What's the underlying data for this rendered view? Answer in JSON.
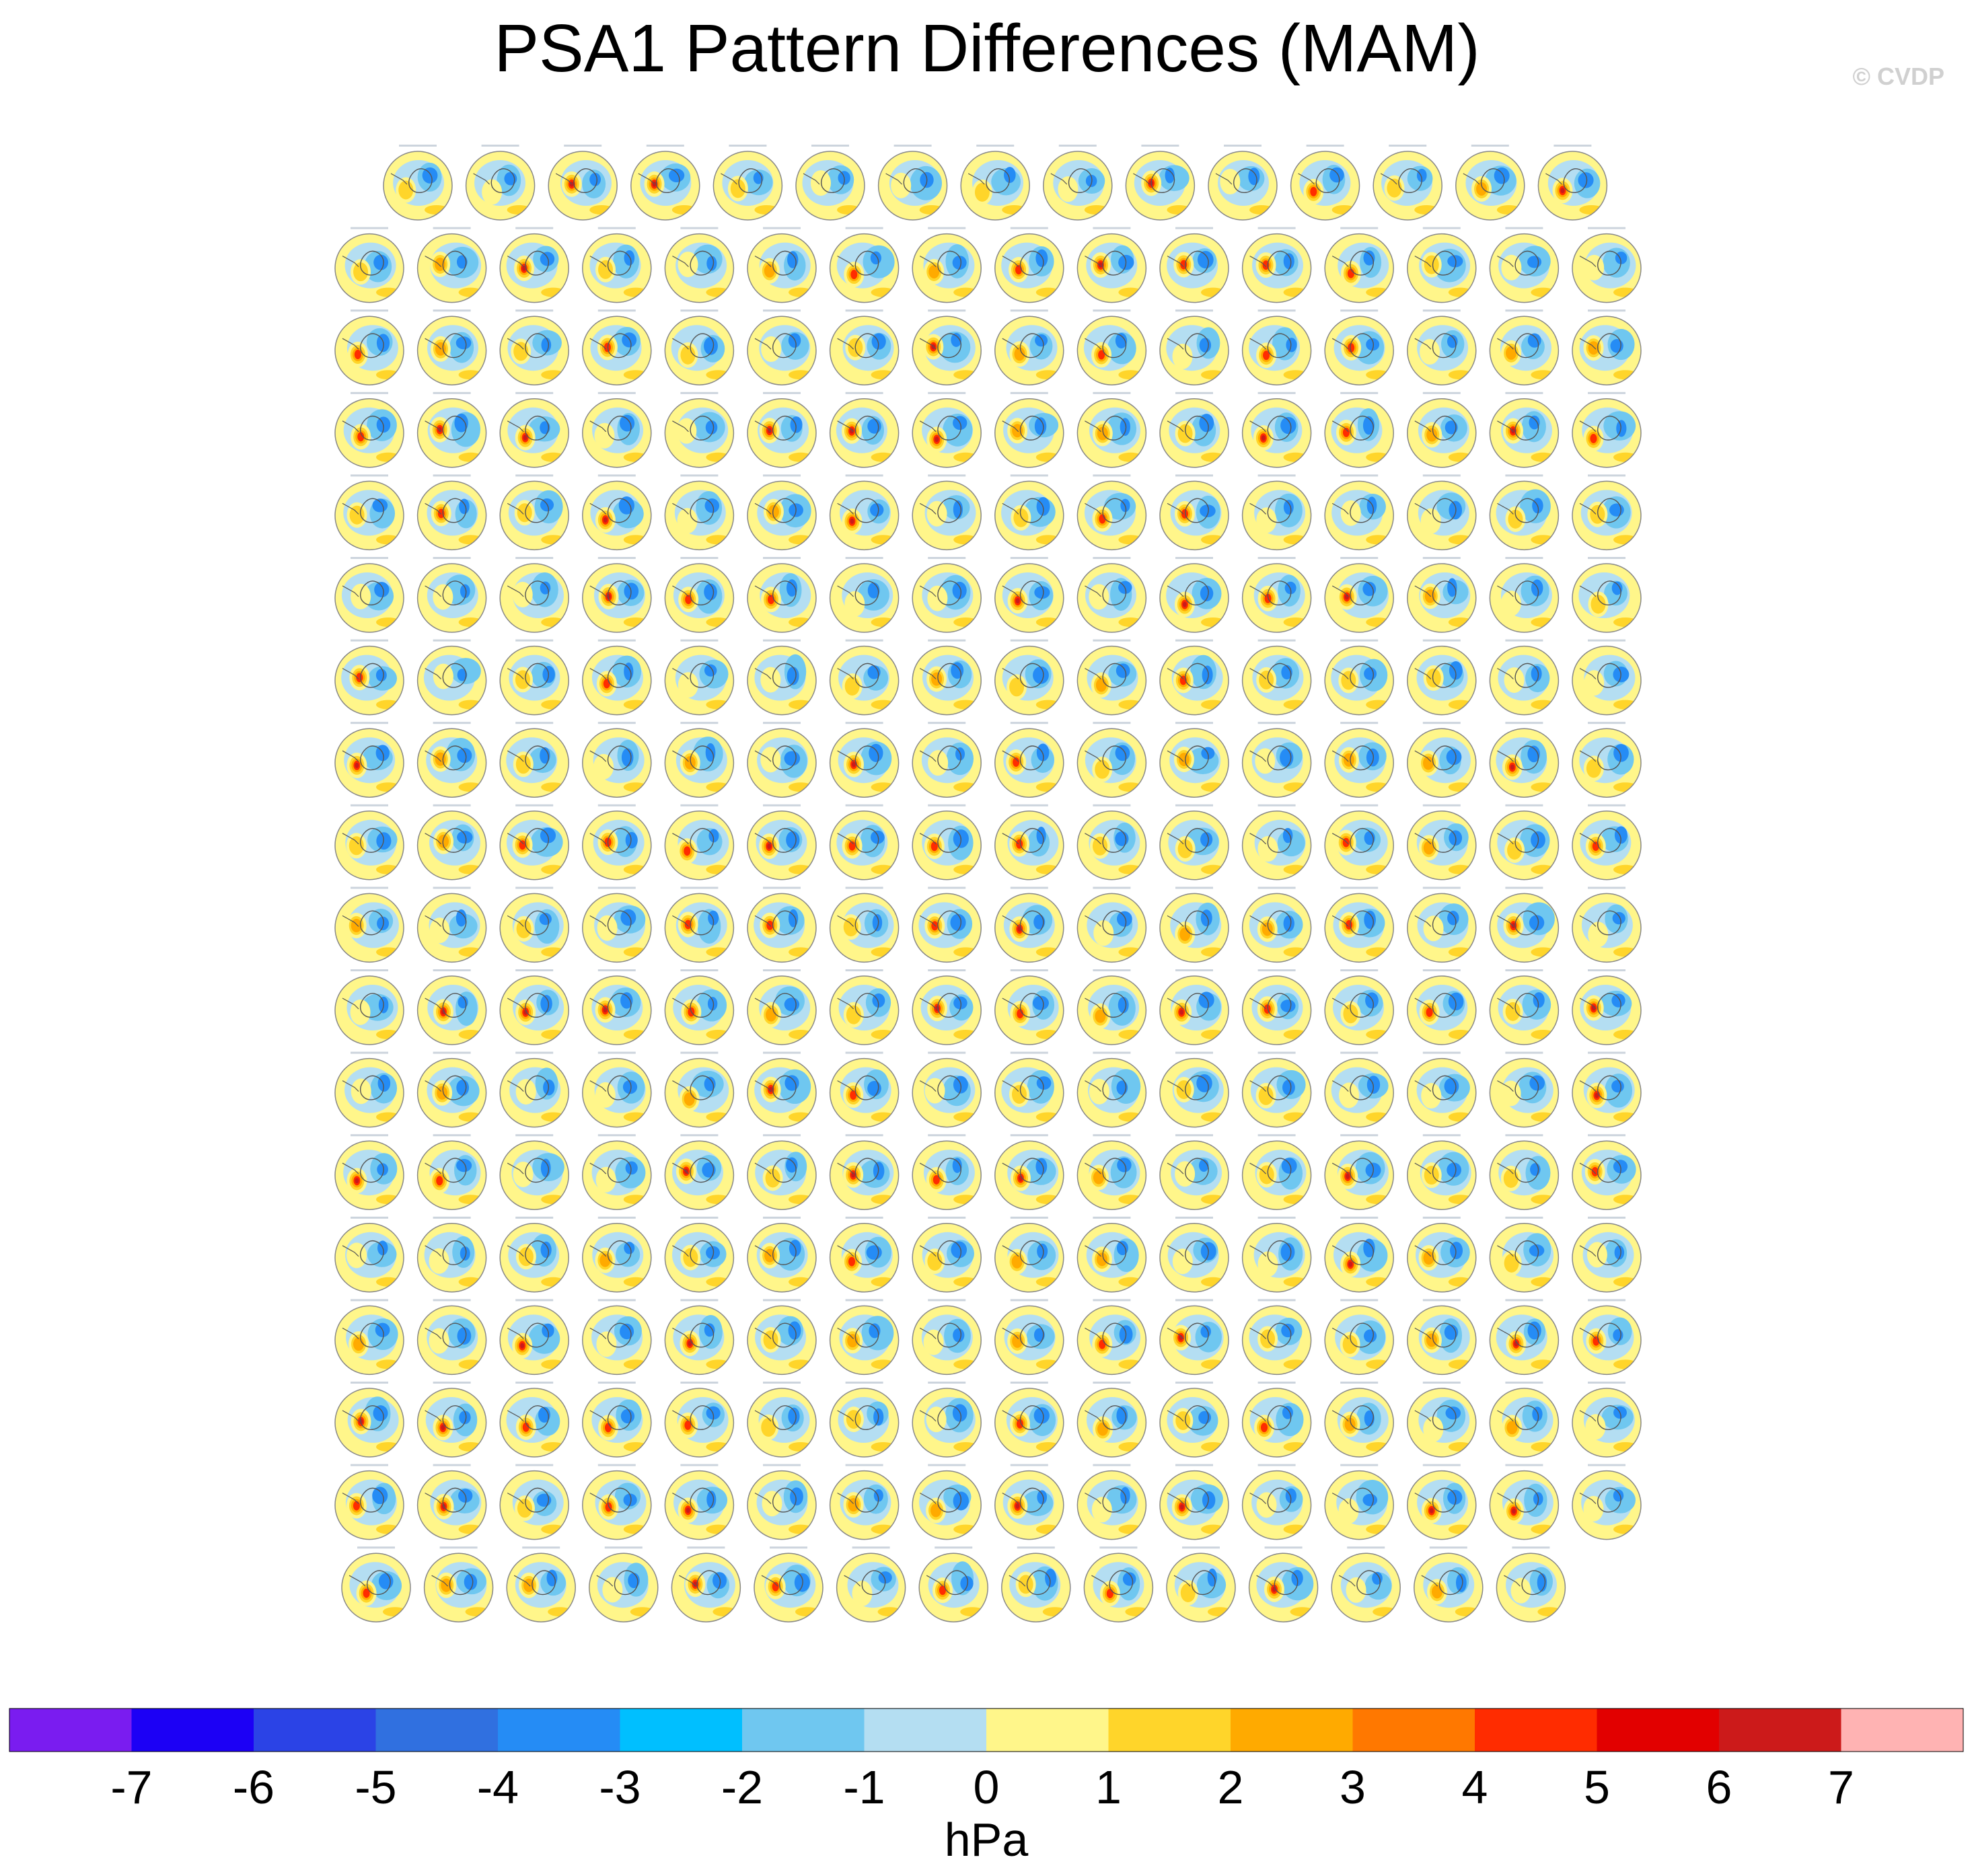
{
  "title": "PSA1 Pattern Differences (MAM)",
  "credit": "© CVDP",
  "chart_data": {
    "type": "heatmap",
    "description_kind": "grid of southern-hemisphere polar map panels",
    "row_counts": [
      15,
      16,
      16,
      16,
      16,
      16,
      16,
      16,
      16,
      16,
      16,
      16,
      16,
      16,
      16,
      16,
      16,
      15
    ],
    "units": "hPa",
    "colorbar": {
      "label": "hPa",
      "ticks": [
        -7,
        -6,
        -5,
        -4,
        -3,
        -2,
        -1,
        0,
        1,
        2,
        3,
        4,
        5,
        6,
        7
      ],
      "colors": [
        "#7a1cf0",
        "#1c00f5",
        "#2b43e6",
        "#3070e0",
        "#258cf5",
        "#00bfff",
        "#6fc7f0",
        "#b4def2",
        "#fff68a",
        "#ffd52a",
        "#ffaa00",
        "#ff7800",
        "#ff2c00",
        "#e20000",
        "#cc1a1a",
        "#ffb3b3"
      ]
    }
  }
}
